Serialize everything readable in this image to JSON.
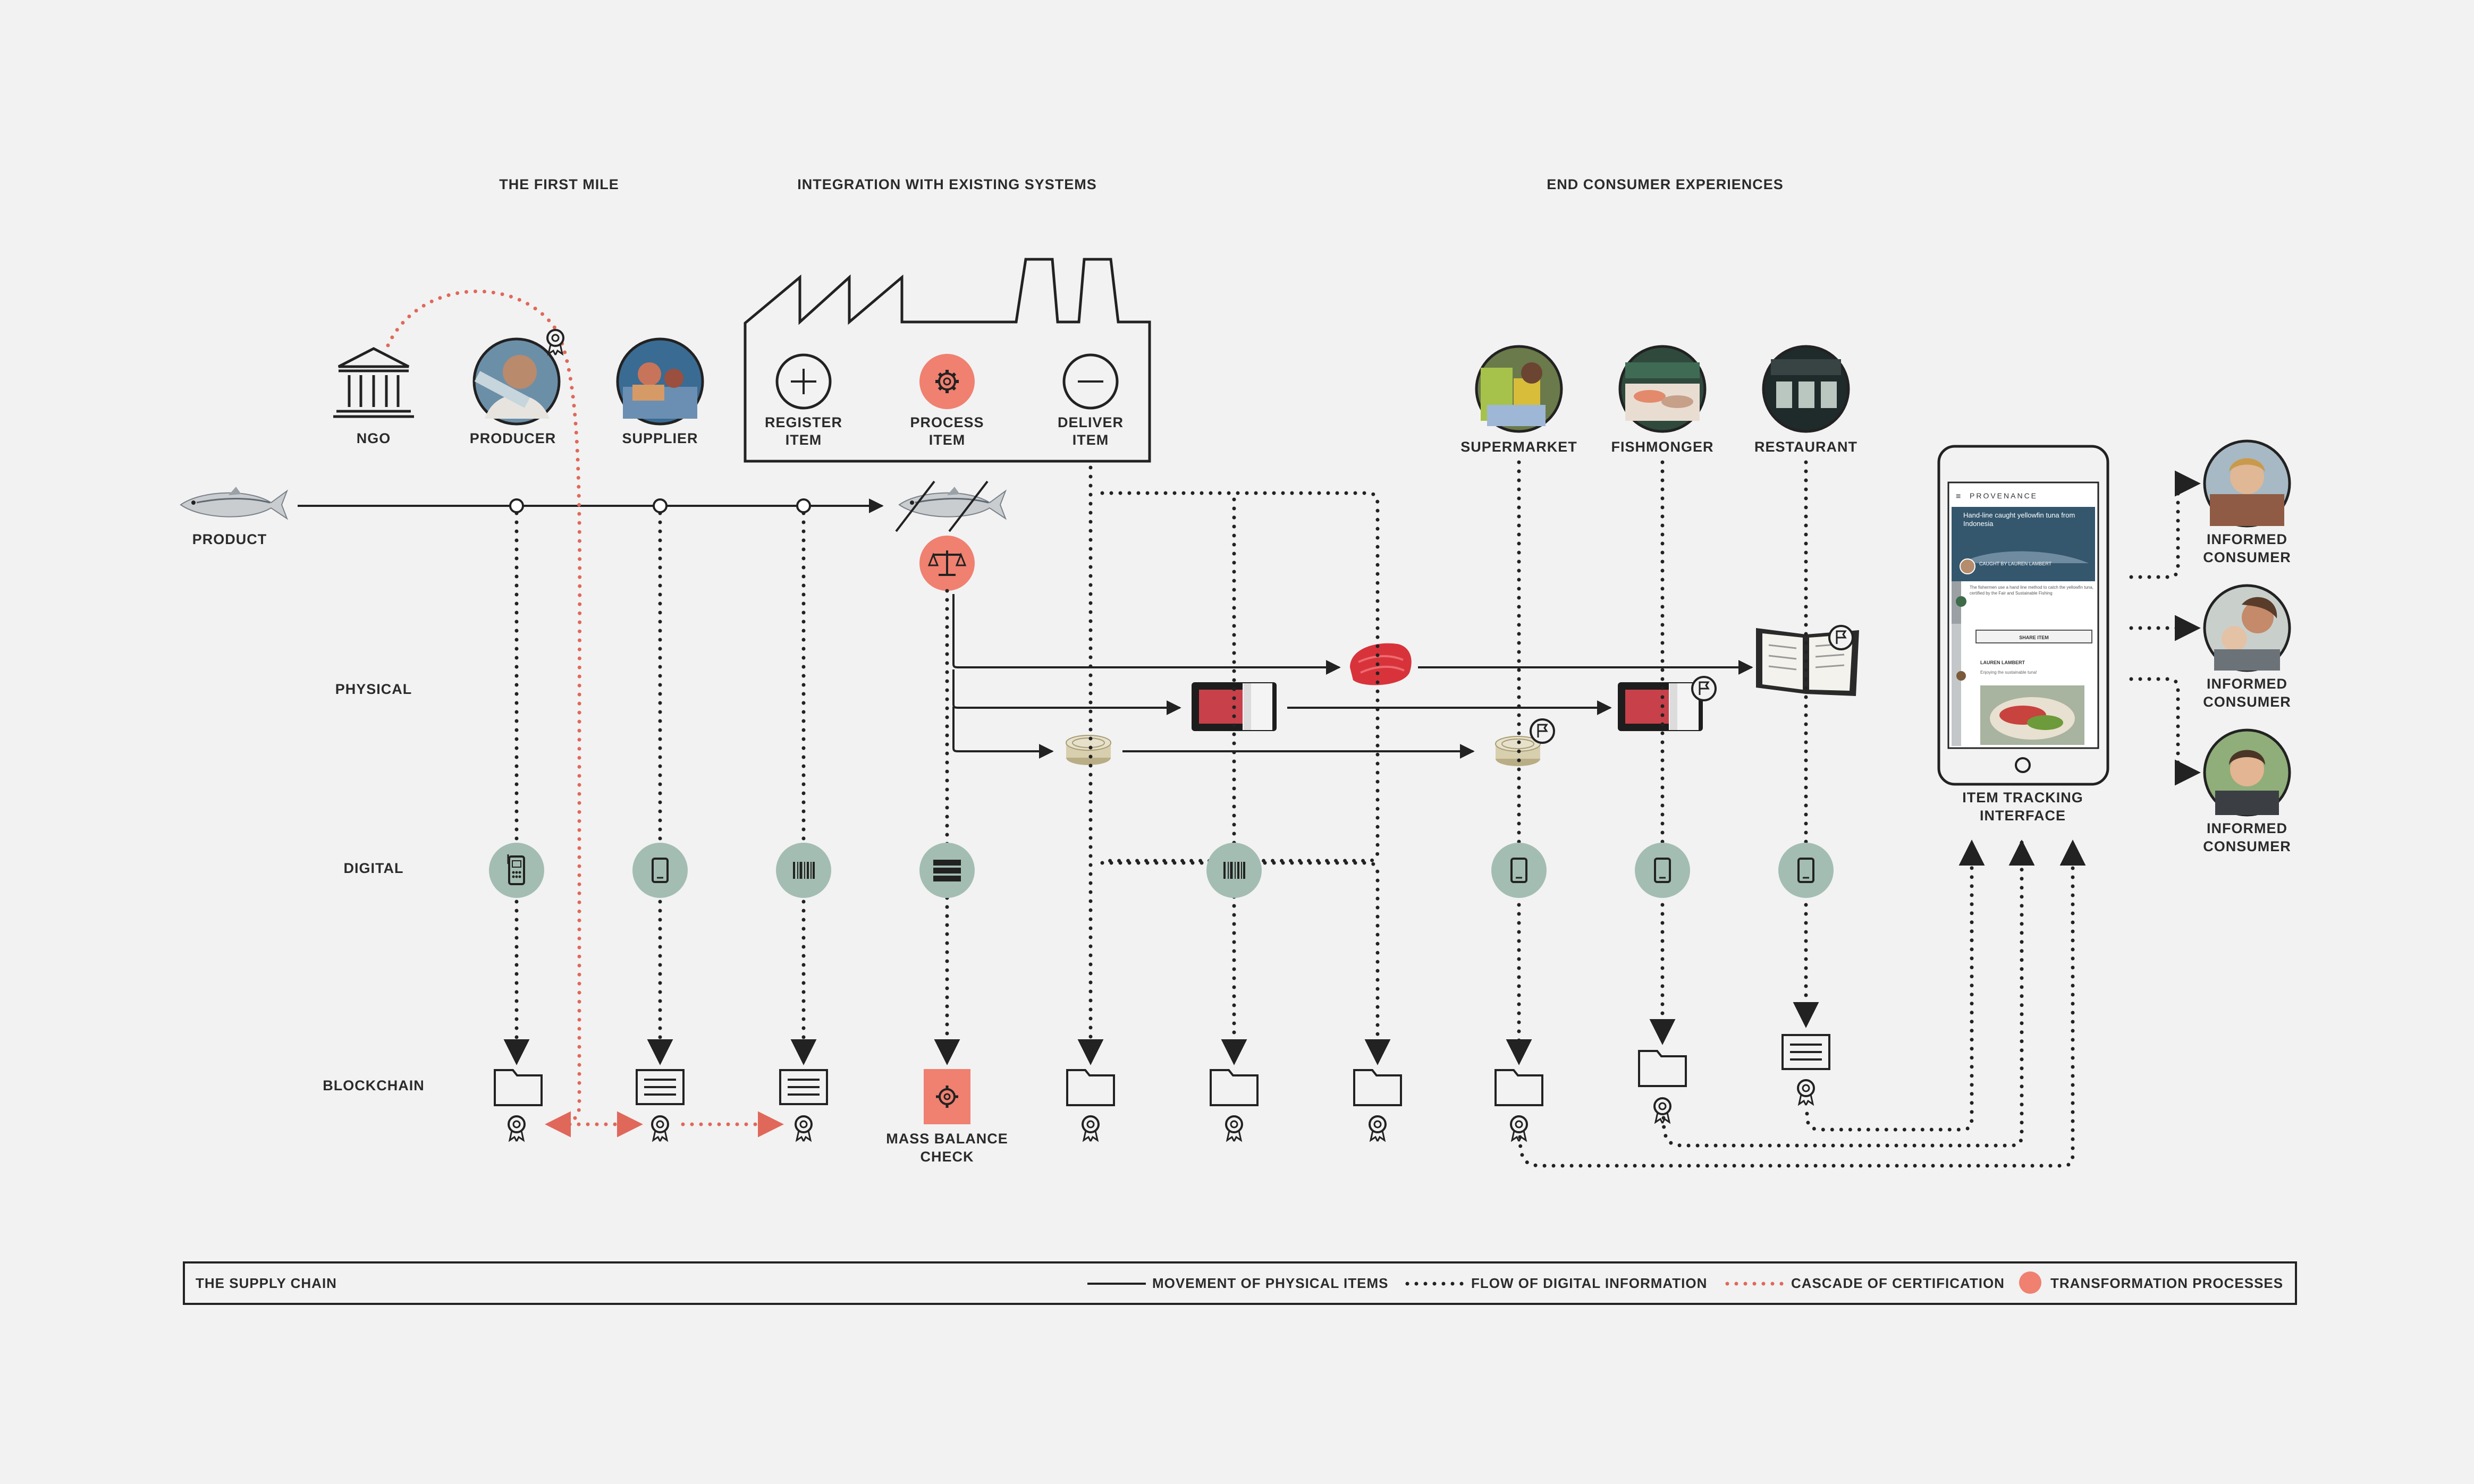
{
  "headers": {
    "first_mile": "THE FIRST MILE",
    "integration": "INTEGRATION WITH EXISTING SYSTEMS",
    "end_consumer": "END CONSUMER EXPERIENCES"
  },
  "rows": {
    "physical": "PHYSICAL",
    "digital": "DIGITAL",
    "blockchain": "BLOCKCHAIN"
  },
  "nodes": {
    "product": "PRODUCT",
    "ngo": "NGO",
    "producer": "PRODUCER",
    "supplier": "SUPPLIER",
    "register_1": "REGISTER",
    "register_2": "ITEM",
    "process_1": "PROCESS",
    "process_2": "ITEM",
    "deliver_1": "DELIVER",
    "deliver_2": "ITEM",
    "supermarket": "SUPERMARKET",
    "fishmonger": "FISHMONGER",
    "restaurant": "RESTAURANT",
    "mass_balance_1": "MASS BALANCE",
    "mass_balance_2": "CHECK",
    "item_tracking_1": "ITEM TRACKING",
    "item_tracking_2": "INTERFACE",
    "consumer_1": "INFORMED",
    "consumer_2": "CONSUMER"
  },
  "phone": {
    "brand": "PROVENANCE",
    "hero_text": "Hand-line caught yellowfin tuna from Indonesia",
    "caught_by": "CAUGHT BY LAUREN LAMBERT",
    "body_text": "The fishermen use a hand line method to catch the yellowfin tuna, certified by the Fair and Sustainable Fishing",
    "share_button": "SHARE ITEM",
    "comment_name": "LAUREN LAMBERT",
    "comment_text": "Enjoying the sustainable tuna!"
  },
  "legend": {
    "title": "THE SUPPLY CHAIN",
    "movement": "MOVEMENT OF PHYSICAL ITEMS",
    "flow": "FLOW OF DIGITAL INFORMATION",
    "cascade": "CASCADE OF CERTIFICATION",
    "transformation": "TRANSFORMATION PROCESSES"
  },
  "colors": {
    "accent": "#f08070",
    "digital_badge": "#a3bdb2",
    "certification": "#e0685a",
    "background": "#f2f2f2",
    "ink": "#222222"
  }
}
